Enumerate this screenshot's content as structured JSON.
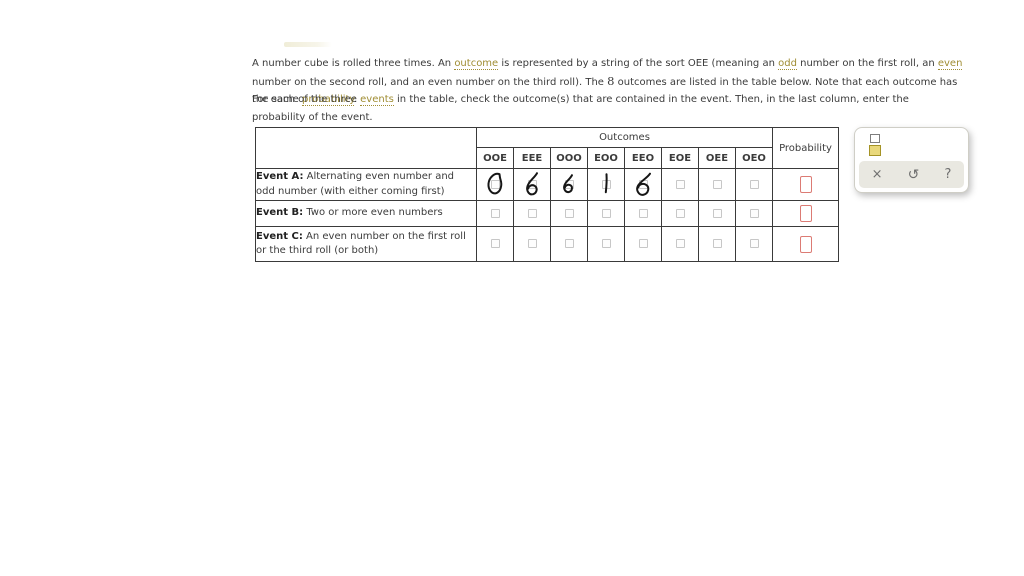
{
  "colors": {
    "text": "#3b3b3b",
    "link": "#a08d33",
    "table_border": "#3a3a3a",
    "checkbox_border": "#c7c7c7",
    "answer_box_border": "#dc7b74",
    "palette_strip_bg": "#e9e8e1",
    "fraction_icon_yellow_fill": "#e9d87b",
    "fraction_icon_yellow_border": "#a59326",
    "ink": "#161616"
  },
  "instructions": {
    "p1_segments": [
      {
        "t": "A number cube is rolled three times. An "
      },
      {
        "t": "outcome",
        "link": true
      },
      {
        "t": " is represented by a string of the sort OEE (meaning an "
      },
      {
        "t": "odd",
        "link": true
      },
      {
        "t": " number on the first roll, an "
      },
      {
        "t": "even",
        "link": true
      },
      {
        "t": " number on the second roll, and an even number on the third roll). The "
      },
      {
        "t": "8",
        "math": true
      },
      {
        "t": " outcomes are listed in the table below. Note that each outcome has the same "
      },
      {
        "t": "probability",
        "link": true
      },
      {
        "t": "."
      }
    ],
    "p2_segments": [
      {
        "t": "For each of the three "
      },
      {
        "t": "events",
        "link": true
      },
      {
        "t": " in the table, check the outcome(s) that are contained in the event. Then, in the last column, enter the probability of the event."
      }
    ]
  },
  "table": {
    "outcomes_header": "Outcomes",
    "probability_header": "Probability",
    "columns": [
      "OOE",
      "EEE",
      "OOO",
      "EOO",
      "EEO",
      "EOE",
      "OEE",
      "OEO"
    ],
    "rows": [
      {
        "label_bold": "Event A:",
        "label_rest": " Alternating even number and odd number (with either coming first)",
        "checkbox_states": [
          false,
          false,
          false,
          false,
          false,
          false,
          false,
          false
        ],
        "ink_marks": [
          "ink-loop-1",
          "ink-loop-2",
          "ink-loop-3",
          "ink-stroke-1",
          "ink-loop-4",
          null,
          null,
          null
        ],
        "probability_value": ""
      },
      {
        "label_bold": "Event B:",
        "label_rest": " Two or more even numbers",
        "checkbox_states": [
          false,
          false,
          false,
          false,
          false,
          false,
          false,
          false
        ],
        "ink_marks": [
          null,
          null,
          null,
          null,
          null,
          null,
          null,
          null
        ],
        "probability_value": ""
      },
      {
        "label_bold": "Event C:",
        "label_rest": " An even number on the first roll or the third roll (or both)",
        "checkbox_states": [
          false,
          false,
          false,
          false,
          false,
          false,
          false,
          false
        ],
        "ink_marks": [
          null,
          null,
          null,
          null,
          null,
          null,
          null,
          null
        ],
        "probability_value": ""
      }
    ]
  },
  "palette": {
    "fraction_icon": "fraction-template-icon",
    "clear_label": "×",
    "undo_label": "↺",
    "help_label": "?"
  }
}
